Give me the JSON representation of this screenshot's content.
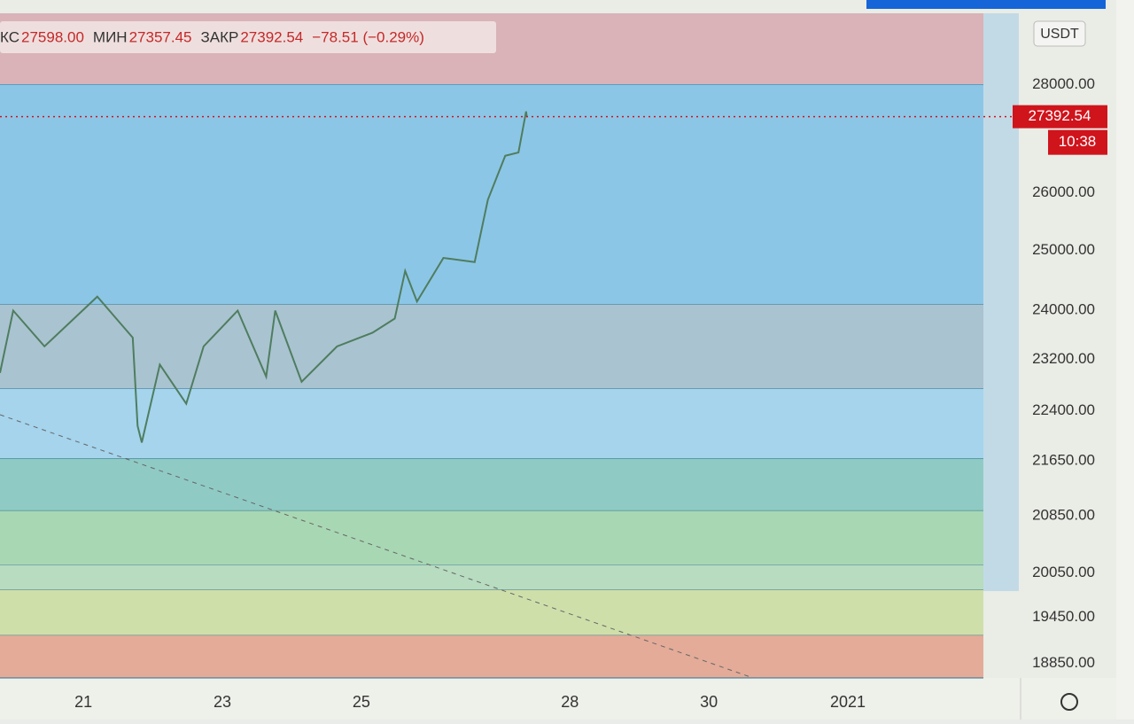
{
  "header": {
    "items": [
      {
        "label": "КС",
        "value": "27598.00"
      },
      {
        "label": "МИН",
        "value": "27357.45"
      },
      {
        "label": "ЗАКР",
        "value": "27392.54"
      }
    ],
    "change": "−78.51 (−0.29%)"
  },
  "chart_data": {
    "type": "line",
    "log_scale": true,
    "currency": "USDT",
    "x": [
      19.8,
      19.99,
      20.44,
      21.2,
      21.71,
      21.78,
      21.84,
      22.1,
      22.48,
      22.73,
      23.22,
      23.63,
      23.76,
      24.14,
      24.65,
      25.16,
      25.48,
      25.63,
      25.8,
      26.18,
      26.63,
      26.82,
      27.07,
      27.26,
      27.37,
      27.38
    ],
    "series": [
      {
        "color": "#4f7d5f",
        "values": [
          22990,
          23990,
          23410,
          24220,
          23550,
          22170,
          21920,
          23120,
          22510,
          23410,
          23990,
          22930,
          23990,
          22850,
          23410,
          23630,
          23860,
          24650,
          24140,
          24870,
          24800,
          25880,
          26670,
          26730,
          27490,
          27392.54
        ]
      }
    ],
    "last_price": 27392.54,
    "last_price_color": "#d0141c",
    "countdown": "10:38",
    "xlim": [
      19.8,
      33.95
    ],
    "xticks": [
      21,
      23,
      25,
      28,
      30,
      {
        "value": 32,
        "label": "2021"
      }
    ],
    "ylim": [
      18660,
      29400
    ],
    "yticks": [
      {
        "value": 28000,
        "label": "28000.00"
      },
      {
        "value": 26000,
        "label": "26000.00"
      },
      {
        "value": 25000,
        "label": "25000.00"
      },
      {
        "value": 24000,
        "label": "24000.00"
      },
      {
        "value": 23200,
        "label": "23200.00"
      },
      {
        "value": 22400,
        "label": "22400.00"
      },
      {
        "value": 21650,
        "label": "21650.00"
      },
      {
        "value": 20850,
        "label": "20850.00"
      },
      {
        "value": 20050,
        "label": "20050.00"
      },
      {
        "value": 19450,
        "label": "19450.00"
      },
      {
        "value": 18850,
        "label": "18850.00"
      }
    ],
    "bands": [
      {
        "from": 28000,
        "to": 29400,
        "color": "#d9b3b8"
      },
      {
        "from": 24090,
        "to": 28000,
        "color": "#8cc6e6"
      },
      {
        "from": 22740,
        "to": 24090,
        "color": "#a9c3d0"
      },
      {
        "from": 21680,
        "to": 22740,
        "color": "#a5d4ec"
      },
      {
        "from": 20920,
        "to": 21680,
        "color": "#8fcbc4"
      },
      {
        "from": 20160,
        "to": 20920,
        "color": "#a8d7b4"
      },
      {
        "from": 19820,
        "to": 20160,
        "color": "#b7dcc0"
      },
      {
        "from": 19210,
        "to": 19820,
        "color": "#cfdfaa"
      },
      {
        "from": 18660,
        "to": 19210,
        "color": "#e3ab98"
      }
    ]
  }
}
